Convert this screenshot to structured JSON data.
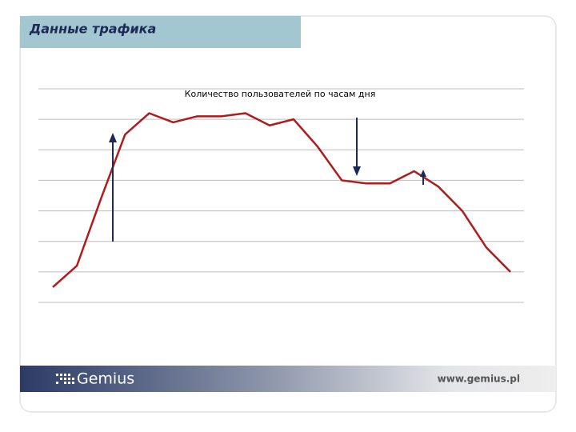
{
  "header": {
    "title": "Данные трафика"
  },
  "chart_data": {
    "type": "line",
    "title": "Количество пользователей по часам дня",
    "categories": [
      null,
      null,
      null,
      null,
      null,
      null,
      null,
      null,
      null,
      null,
      null,
      null,
      null,
      null,
      null,
      null,
      null,
      null,
      null,
      null
    ],
    "series": [
      {
        "color": "#b01c1c",
        "values": [
          0.5,
          1.2,
          3.4,
          5.5,
          6.2,
          5.9,
          6.1,
          6.1,
          6.2,
          5.8,
          6.0,
          5.1,
          4.0,
          3.9,
          3.9,
          4.3,
          3.8,
          3.0,
          1.8,
          1.0
        ]
      }
    ],
    "ylim": [
      0,
      7
    ],
    "yticks": [
      0,
      1,
      2,
      3,
      4,
      5,
      6,
      7
    ],
    "grid": true
  },
  "footer": {
    "logo": "Gemius",
    "url": "www.gemius.pl"
  }
}
